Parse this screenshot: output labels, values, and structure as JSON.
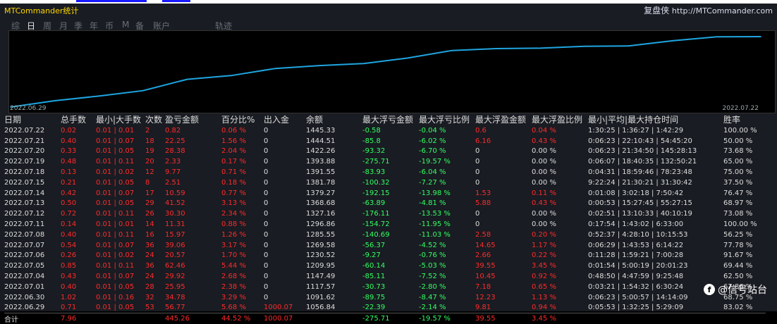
{
  "app": {
    "title": "MTCommander统计",
    "brand": "复盘侠",
    "url": "http://MTCommander.com"
  },
  "tabs": [
    "综",
    "日",
    "周",
    "月",
    "季",
    "年",
    "币",
    "M",
    "备",
    "账户",
    "轨迹"
  ],
  "active_tab": "日",
  "chart": {
    "date_start": "2022.06.29",
    "date_end": "2022.07.22",
    "line_color": "#1fa5e0"
  },
  "chart_data": {
    "type": "line",
    "x": [
      "2022.06.29",
      "2022.06.30",
      "2022.07.01",
      "2022.07.04",
      "2022.07.05",
      "2022.07.06",
      "2022.07.07",
      "2022.07.08",
      "2022.07.11",
      "2022.07.12",
      "2022.07.13",
      "2022.07.14",
      "2022.07.15",
      "2022.07.18",
      "2022.07.19",
      "2022.07.20",
      "2022.07.21",
      "2022.07.22"
    ],
    "series": [
      {
        "values": [
          1056.84,
          1091.62,
          1117.57,
          1147.49,
          1209.95,
          1230.52,
          1269.58,
          1285.55,
          1296.86,
          1327.16,
          1368.68,
          1379.27,
          1381.78,
          1391.55,
          1393.88,
          1422.26,
          1444.51,
          1445.33
        ]
      }
    ]
  },
  "table": {
    "headers": [
      "日期",
      "总手数",
      "最小|大手数",
      "次数",
      "盈亏金额",
      "百分比%",
      "出入金",
      "余额",
      "最大浮亏金额",
      "最大浮亏比例",
      "最大浮盈金额",
      "最大浮盈比例",
      "最小|平均|最大持仓时间",
      "胜率"
    ],
    "rows": [
      [
        "2022.07.22",
        "0.02",
        "0.01 | 0.01",
        "2",
        "0.82",
        "0.06 %",
        "0",
        "1445.33",
        "-0.58",
        "-0.04 %",
        "0.6",
        "0.04 %",
        "1:30:25 | 1:36:27 | 1:42:29",
        "100.00 %"
      ],
      [
        "2022.07.21",
        "0.40",
        "0.01 | 0.07",
        "18",
        "22.25",
        "1.56 %",
        "0",
        "1444.51",
        "-85.8",
        "-6.02 %",
        "6.16",
        "0.43 %",
        "0:06:23 | 22:10:43 | 54:45:20",
        "50.00 %"
      ],
      [
        "2022.07.20",
        "0.33",
        "0.01 | 0.05",
        "19",
        "28.38",
        "2.04 %",
        "0",
        "1422.26",
        "-93.32",
        "-6.70 %",
        "0",
        "0.00 %",
        "0:06:23 | 21:34:50 | 145:28:13",
        "73.68 %"
      ],
      [
        "2022.07.19",
        "0.48",
        "0.01 | 0.11",
        "20",
        "2.33",
        "0.17 %",
        "0",
        "1393.88",
        "-275.71",
        "-19.57 %",
        "0",
        "0.00 %",
        "0:06:07 | 18:40:35 | 132:50:21",
        "65.00 %"
      ],
      [
        "2022.07.18",
        "0.13",
        "0.01 | 0.02",
        "12",
        "9.77",
        "0.71 %",
        "0",
        "1391.55",
        "-83.93",
        "-6.04 %",
        "0",
        "0.00 %",
        "0:04:31 | 18:59:46 | 78:23:48",
        "75.00 %"
      ],
      [
        "2022.07.15",
        "0.21",
        "0.01 | 0.05",
        "8",
        "2.51",
        "0.18 %",
        "0",
        "1381.78",
        "-100.32",
        "-7.27 %",
        "0",
        "0.00 %",
        "9:22:24 | 21:30:21 | 31:30:42",
        "37.50 %"
      ],
      [
        "2022.07.14",
        "0.42",
        "0.01 | 0.07",
        "17",
        "10.59",
        "0.77 %",
        "0",
        "1379.27",
        "-192.15",
        "-13.98 %",
        "1.53",
        "0.11 %",
        "0:01:08 | 3:02:18 | 7:50:42",
        "76.47 %"
      ],
      [
        "2022.07.13",
        "0.50",
        "0.01 | 0.05",
        "29",
        "41.52",
        "3.13 %",
        "0",
        "1368.68",
        "-63.89",
        "-4.81 %",
        "5.88",
        "0.43 %",
        "0:00:53 | 15:27:45 | 55:27:15",
        "68.97 %"
      ],
      [
        "2022.07.12",
        "0.72",
        "0.01 | 0.11",
        "26",
        "30.30",
        "2.34 %",
        "0",
        "1327.16",
        "-176.11",
        "-13.53 %",
        "0",
        "0.00 %",
        "0:02:51 | 13:10:33 | 40:10:19",
        "73.08 %"
      ],
      [
        "2022.07.11",
        "0.14",
        "0.01 | 0.01",
        "14",
        "11.31",
        "0.88 %",
        "0",
        "1296.86",
        "-154.72",
        "-11.95 %",
        "0",
        "0.00 %",
        "0:17:54 | 1:43:02 | 6:33:00",
        "100.00 %"
      ],
      [
        "2022.07.08",
        "0.40",
        "0.01 | 0.11",
        "16",
        "15.97",
        "1.26 %",
        "0",
        "1285.55",
        "-140.69",
        "-11.03 %",
        "2.58",
        "0.20 %",
        "0:52:37 | 4:28:10 | 10:15:53",
        "56.25 %"
      ],
      [
        "2022.07.07",
        "0.54",
        "0.01 | 0.07",
        "36",
        "39.06",
        "3.17 %",
        "0",
        "1269.58",
        "-56.37",
        "-4.52 %",
        "14.65",
        "1.17 %",
        "0:06:29 | 1:43:53 | 6:14:22",
        "77.78 %"
      ],
      [
        "2022.07.06",
        "0.26",
        "0.01 | 0.02",
        "24",
        "20.57",
        "1.70 %",
        "0",
        "1230.52",
        "-9.27",
        "-0.76 %",
        "2.66",
        "0.22 %",
        "0:11:28 | 1:59:21 | 7:00:28",
        "91.67 %"
      ],
      [
        "2022.07.05",
        "0.85",
        "0.01 | 0.11",
        "36",
        "62.46",
        "5.44 %",
        "0",
        "1209.95",
        "-60.14",
        "-5.03 %",
        "39.55",
        "3.45 %",
        "0:01:54 | 5:00:19 | 20:01:23",
        "69.44 %"
      ],
      [
        "2022.07.04",
        "0.43",
        "0.01 | 0.07",
        "24",
        "29.92",
        "2.68 %",
        "0",
        "1147.49",
        "-85.11",
        "-7.52 %",
        "10.45",
        "0.92 %",
        "0:48:50 | 4:47:59 | 9:25:48",
        "62.50 %"
      ],
      [
        "2022.07.01",
        "0.40",
        "0.01 | 0.05",
        "28",
        "25.95",
        "2.38 %",
        "0",
        "1117.57",
        "-30.73",
        "-2.80 %",
        "7.18",
        "0.65 %",
        "0:03:21 | 1:54:32 | 6:30:24",
        "67.86 %"
      ],
      [
        "2022.06.30",
        "1.02",
        "0.01 | 0.16",
        "32",
        "34.78",
        "3.29 %",
        "0",
        "1091.62",
        "-89.75",
        "-8.47 %",
        "12.23",
        "1.13 %",
        "0:06:23 | 5:00:57 | 14:14:09",
        "68.75 %"
      ],
      [
        "2022.06.29",
        "0.71",
        "0.01 | 0.05",
        "53",
        "56.77",
        "5.68 %",
        "1000.07",
        "1056.84",
        "-22.39",
        "-2.14 %",
        "9.81",
        "0.94 %",
        "0:05:53 | 1:32:25 | 5:29:09",
        "83.02 %"
      ]
    ],
    "total": [
      "合计",
      "7.96",
      "",
      "",
      "445.26",
      "44.52 %",
      "1000.07",
      "",
      "-275.71",
      "-19.57 %",
      "39.55",
      "3.45 %",
      "",
      ""
    ]
  },
  "watermark": {
    "icon_text": "f",
    "text": "@信号站台"
  }
}
